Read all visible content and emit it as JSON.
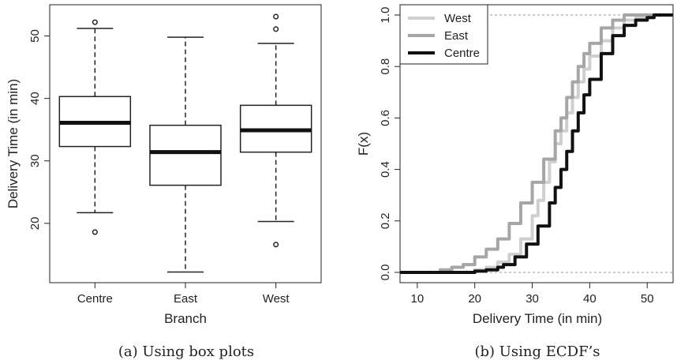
{
  "chart_data": [
    {
      "type": "box",
      "xlabel": "Branch",
      "ylabel": "Delivery Time (in min)",
      "categories": [
        "Centre",
        "East",
        "West"
      ],
      "ylim": [
        10.5,
        55
      ],
      "yticks": [
        20,
        30,
        40,
        50
      ],
      "boxes": [
        {
          "name": "Centre",
          "whisker_low": 21.7,
          "q1": 32.3,
          "median": 36.1,
          "q3": 40.3,
          "whisker_high": 51.2,
          "outliers": [
            52.2,
            18.6
          ]
        },
        {
          "name": "East",
          "whisker_low": 12.2,
          "q1": 26.1,
          "median": 31.4,
          "q3": 35.7,
          "whisker_high": 49.8,
          "outliers": []
        },
        {
          "name": "West",
          "whisker_low": 20.3,
          "q1": 31.4,
          "median": 34.9,
          "q3": 38.9,
          "whisker_high": 48.8,
          "outliers": [
            53.1,
            51.1,
            16.6
          ]
        }
      ],
      "caption": "(a) Using box plots"
    },
    {
      "type": "line",
      "subtype": "ecdf",
      "xlabel": "Delivery Time (in min)",
      "ylabel": "F(x)",
      "xlim": [
        7,
        54.5
      ],
      "ylim": [
        -0.04,
        1.04
      ],
      "xticks": [
        10,
        20,
        30,
        40,
        50
      ],
      "yticks": [
        "0.0",
        "0.2",
        "0.4",
        "0.6",
        "0.8",
        "1.0"
      ],
      "reference_lines": [
        0,
        1
      ],
      "legend": "top-left",
      "series": [
        {
          "name": "West",
          "color": "#cfcfcf",
          "points": [
            [
              16.6,
              0
            ],
            [
              20,
              0.01
            ],
            [
              22,
              0.02
            ],
            [
              24,
              0.04
            ],
            [
              26,
              0.07
            ],
            [
              28,
              0.13
            ],
            [
              30,
              0.22
            ],
            [
              31,
              0.28
            ],
            [
              32,
              0.35
            ],
            [
              33,
              0.43
            ],
            [
              34,
              0.5
            ],
            [
              35,
              0.55
            ],
            [
              36,
              0.62
            ],
            [
              37,
              0.68
            ],
            [
              38,
              0.74
            ],
            [
              39,
              0.79
            ],
            [
              40,
              0.84
            ],
            [
              42,
              0.9
            ],
            [
              44,
              0.95
            ],
            [
              46,
              0.98
            ],
            [
              48,
              0.99
            ],
            [
              51.1,
              1
            ],
            [
              53.1,
              1
            ]
          ]
        },
        {
          "name": "East",
          "color": "#a6a6a6",
          "points": [
            [
              12.2,
              0
            ],
            [
              14,
              0.01
            ],
            [
              16,
              0.02
            ],
            [
              18,
              0.03
            ],
            [
              20,
              0.06
            ],
            [
              22,
              0.09
            ],
            [
              24,
              0.13
            ],
            [
              26,
              0.19
            ],
            [
              28,
              0.27
            ],
            [
              30,
              0.35
            ],
            [
              32,
              0.44
            ],
            [
              34,
              0.55
            ],
            [
              35,
              0.6
            ],
            [
              36,
              0.68
            ],
            [
              37,
              0.74
            ],
            [
              38,
              0.8
            ],
            [
              39,
              0.85
            ],
            [
              40,
              0.89
            ],
            [
              42,
              0.95
            ],
            [
              44,
              0.98
            ],
            [
              46,
              1
            ],
            [
              49.8,
              1
            ]
          ]
        },
        {
          "name": "Centre",
          "color": "#111111",
          "points": [
            [
              18.6,
              0
            ],
            [
              20,
              0.005
            ],
            [
              22,
              0.01
            ],
            [
              24,
              0.02
            ],
            [
              25,
              0.03
            ],
            [
              27,
              0.06
            ],
            [
              29,
              0.11
            ],
            [
              31,
              0.18
            ],
            [
              33,
              0.27
            ],
            [
              34,
              0.33
            ],
            [
              35,
              0.4
            ],
            [
              36,
              0.47
            ],
            [
              37,
              0.55
            ],
            [
              38,
              0.62
            ],
            [
              39,
              0.69
            ],
            [
              40,
              0.75
            ],
            [
              42,
              0.85
            ],
            [
              44,
              0.92
            ],
            [
              46,
              0.96
            ],
            [
              48,
              0.98
            ],
            [
              50,
              0.99
            ],
            [
              51.2,
              1
            ],
            [
              52.2,
              1
            ]
          ]
        }
      ],
      "caption": "(b) Using ECDF’s"
    }
  ]
}
